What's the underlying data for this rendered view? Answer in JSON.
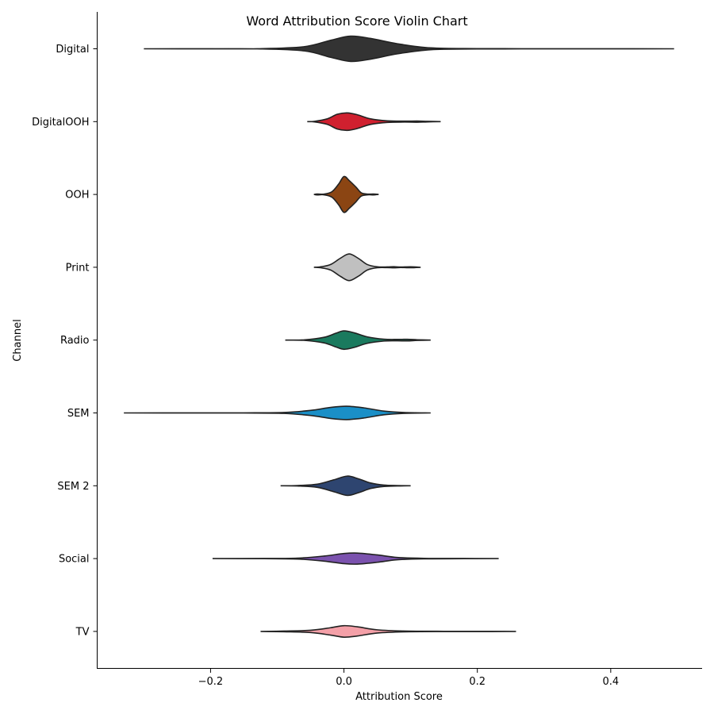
{
  "chart_data": {
    "type": "violin",
    "title": "Word Attribution Score Violin Chart",
    "xlabel": "Attribution Score",
    "ylabel": "Channel",
    "xlim": [
      -0.37,
      0.537
    ],
    "xticks": [
      -0.2,
      0.0,
      0.2,
      0.4
    ],
    "xtick_labels": [
      "−0.2",
      "0.0",
      "0.2",
      "0.4"
    ],
    "grid": false,
    "series": [
      {
        "name": "Digital",
        "color": "#333333",
        "min": -0.3,
        "max": 0.495,
        "profile": [
          [
            -0.3,
            0.0
          ],
          [
            -0.2,
            0.002
          ],
          [
            -0.13,
            0.004
          ],
          [
            -0.06,
            0.09
          ],
          [
            -0.02,
            0.37
          ],
          [
            0.01,
            0.55
          ],
          [
            0.04,
            0.45
          ],
          [
            0.08,
            0.22
          ],
          [
            0.13,
            0.04
          ],
          [
            0.2,
            0.008
          ],
          [
            0.3,
            0.004
          ],
          [
            0.4,
            0.003
          ],
          [
            0.495,
            0.0
          ]
        ]
      },
      {
        "name": "DigitalOOH",
        "color": "#d0202f",
        "min": -0.055,
        "max": 0.145,
        "profile": [
          [
            -0.055,
            0.0
          ],
          [
            -0.045,
            0.01
          ],
          [
            -0.025,
            0.12
          ],
          [
            -0.01,
            0.32
          ],
          [
            0.005,
            0.38
          ],
          [
            0.02,
            0.3
          ],
          [
            0.04,
            0.12
          ],
          [
            0.065,
            0.035
          ],
          [
            0.09,
            0.02
          ],
          [
            0.11,
            0.025
          ],
          [
            0.125,
            0.012
          ],
          [
            0.145,
            0.0
          ]
        ]
      },
      {
        "name": "OOH",
        "color": "#8b4513",
        "min": -0.045,
        "max": 0.052,
        "profile": [
          [
            -0.045,
            0.0
          ],
          [
            -0.04,
            0.02
          ],
          [
            -0.03,
            0.015
          ],
          [
            -0.018,
            0.12
          ],
          [
            -0.008,
            0.45
          ],
          [
            0.0,
            0.78
          ],
          [
            0.008,
            0.6
          ],
          [
            0.018,
            0.32
          ],
          [
            0.026,
            0.07
          ],
          [
            0.036,
            0.015
          ],
          [
            0.044,
            0.02
          ],
          [
            0.052,
            0.0
          ]
        ]
      },
      {
        "name": "Print",
        "color": "#c0c0c0",
        "min": -0.045,
        "max": 0.115,
        "profile": [
          [
            -0.045,
            0.0
          ],
          [
            -0.035,
            0.02
          ],
          [
            -0.02,
            0.12
          ],
          [
            -0.005,
            0.4
          ],
          [
            0.008,
            0.58
          ],
          [
            0.022,
            0.38
          ],
          [
            0.035,
            0.12
          ],
          [
            0.05,
            0.02
          ],
          [
            0.065,
            0.015
          ],
          [
            0.075,
            0.025
          ],
          [
            0.085,
            0.01
          ],
          [
            0.1,
            0.02
          ],
          [
            0.115,
            0.0
          ]
        ]
      },
      {
        "name": "Radio",
        "color": "#1a7a5e",
        "min": -0.088,
        "max": 0.13,
        "profile": [
          [
            -0.088,
            0.0
          ],
          [
            -0.06,
            0.01
          ],
          [
            -0.03,
            0.12
          ],
          [
            -0.012,
            0.3
          ],
          [
            0.0,
            0.4
          ],
          [
            0.015,
            0.32
          ],
          [
            0.035,
            0.14
          ],
          [
            0.06,
            0.04
          ],
          [
            0.08,
            0.03
          ],
          [
            0.095,
            0.035
          ],
          [
            0.11,
            0.015
          ],
          [
            0.13,
            0.0
          ]
        ]
      },
      {
        "name": "SEM",
        "color": "#1a8fc7",
        "min": -0.33,
        "max": 0.13,
        "profile": [
          [
            -0.33,
            0.0
          ],
          [
            -0.25,
            0.003
          ],
          [
            -0.15,
            0.004
          ],
          [
            -0.09,
            0.02
          ],
          [
            -0.05,
            0.11
          ],
          [
            -0.02,
            0.24
          ],
          [
            0.004,
            0.29
          ],
          [
            0.03,
            0.22
          ],
          [
            0.06,
            0.08
          ],
          [
            0.09,
            0.02
          ],
          [
            0.13,
            0.0
          ]
        ]
      },
      {
        "name": "SEM 2",
        "color": "#2e4570",
        "min": -0.095,
        "max": 0.1,
        "profile": [
          [
            -0.095,
            0.0
          ],
          [
            -0.07,
            0.01
          ],
          [
            -0.04,
            0.07
          ],
          [
            -0.015,
            0.26
          ],
          [
            0.005,
            0.42
          ],
          [
            0.022,
            0.3
          ],
          [
            0.04,
            0.12
          ],
          [
            0.06,
            0.03
          ],
          [
            0.08,
            0.01
          ],
          [
            0.1,
            0.0
          ]
        ]
      },
      {
        "name": "Social",
        "color": "#7b52ae",
        "min": -0.197,
        "max": 0.232,
        "profile": [
          [
            -0.197,
            0.0
          ],
          [
            -0.12,
            0.005
          ],
          [
            -0.07,
            0.02
          ],
          [
            -0.03,
            0.11
          ],
          [
            0.0,
            0.22
          ],
          [
            0.02,
            0.24
          ],
          [
            0.05,
            0.16
          ],
          [
            0.08,
            0.05
          ],
          [
            0.12,
            0.012
          ],
          [
            0.18,
            0.005
          ],
          [
            0.232,
            0.0
          ]
        ]
      },
      {
        "name": "TV",
        "color": "#f4a0a8",
        "min": -0.125,
        "max": 0.258,
        "profile": [
          [
            -0.125,
            0.0
          ],
          [
            -0.09,
            0.015
          ],
          [
            -0.05,
            0.05
          ],
          [
            -0.02,
            0.16
          ],
          [
            0.0,
            0.25
          ],
          [
            0.02,
            0.2
          ],
          [
            0.05,
            0.07
          ],
          [
            0.09,
            0.018
          ],
          [
            0.15,
            0.005
          ],
          [
            0.21,
            0.005
          ],
          [
            0.258,
            0.0
          ]
        ]
      }
    ]
  }
}
